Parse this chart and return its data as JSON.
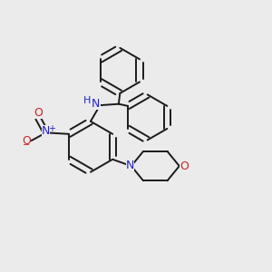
{
  "bg_color": "#ebebeb",
  "bond_color": "#1a1a1a",
  "N_color": "#2222cc",
  "O_color": "#cc2222",
  "line_width": 1.4,
  "dbo": 0.012,
  "figsize": [
    3.0,
    3.0
  ],
  "dpi": 100,
  "xlim": [
    0.0,
    1.0
  ],
  "ylim": [
    0.0,
    1.0
  ]
}
